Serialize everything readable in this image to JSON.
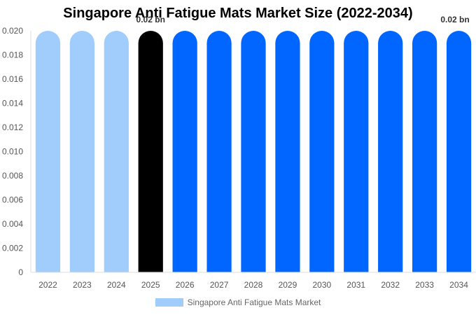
{
  "chart_data": {
    "type": "bar",
    "title": "Singapore Anti Fatigue Mats Market Size (2022-2034)",
    "categories": [
      "2022",
      "2023",
      "2024",
      "2025",
      "2026",
      "2027",
      "2028",
      "2029",
      "2030",
      "2031",
      "2032",
      "2033",
      "2034"
    ],
    "series": [
      {
        "name": "Singapore Anti Fatigue Mats Market",
        "values": [
          0.02,
          0.02,
          0.02,
          0.02,
          0.02,
          0.02,
          0.02,
          0.02,
          0.02,
          0.02,
          0.02,
          0.02,
          0.02
        ]
      }
    ],
    "bar_colors": [
      "#a0cdfb",
      "#a0cdfb",
      "#a0cdfb",
      "#000000",
      "#0066ff",
      "#0066ff",
      "#0066ff",
      "#0066ff",
      "#0066ff",
      "#0066ff",
      "#0066ff",
      "#0066ff",
      "#0066ff"
    ],
    "data_labels": [
      {
        "index": 3,
        "text": "0.02 bn"
      },
      {
        "index": 12,
        "text": "0.02 bn"
      }
    ],
    "yticks": [
      "0",
      "0.002",
      "0.004",
      "0.006",
      "0.008",
      "0.010",
      "0.012",
      "0.014",
      "0.016",
      "0.018",
      "0.020"
    ],
    "ylim": [
      0,
      0.02
    ],
    "legend_position": "bottom",
    "legend_color": "#a0cdfb",
    "grid": false
  }
}
